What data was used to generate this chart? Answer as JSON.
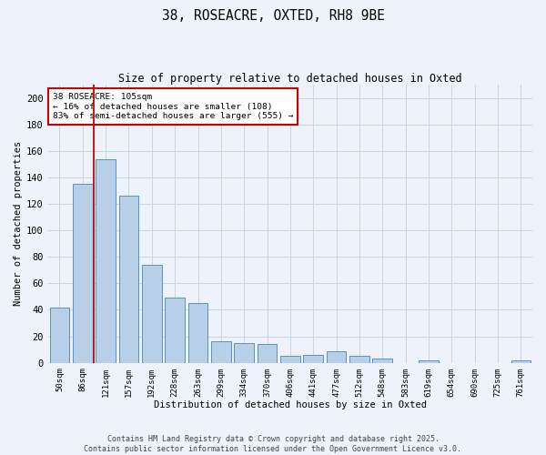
{
  "title_line1": "38, ROSEACRE, OXTED, RH8 9BE",
  "title_line2": "Size of property relative to detached houses in Oxted",
  "xlabel": "Distribution of detached houses by size in Oxted",
  "ylabel": "Number of detached properties",
  "categories": [
    "50sqm",
    "86sqm",
    "121sqm",
    "157sqm",
    "192sqm",
    "228sqm",
    "263sqm",
    "299sqm",
    "334sqm",
    "370sqm",
    "406sqm",
    "441sqm",
    "477sqm",
    "512sqm",
    "548sqm",
    "583sqm",
    "619sqm",
    "654sqm",
    "690sqm",
    "725sqm",
    "761sqm"
  ],
  "values": [
    42,
    135,
    154,
    126,
    74,
    49,
    45,
    16,
    15,
    14,
    5,
    6,
    9,
    5,
    3,
    0,
    2,
    0,
    0,
    0,
    2
  ],
  "bar_color": "#b8cfe8",
  "bar_edge_color": "#5b8fc9",
  "vline_x": 1.5,
  "vline_color": "#cc0000",
  "annotation_text": "38 ROSEACRE: 105sqm\n← 16% of detached houses are smaller (108)\n83% of semi-detached houses are larger (555) →",
  "annotation_box_facecolor": "#ffffff",
  "annotation_box_edgecolor": "#cc0000",
  "ylim": [
    0,
    210
  ],
  "yticks": [
    0,
    20,
    40,
    60,
    80,
    100,
    120,
    140,
    160,
    180,
    200
  ],
  "grid_color": "#c8d4e8",
  "background_color": "#eef2fa",
  "footer_line1": "Contains HM Land Registry data © Crown copyright and database right 2025.",
  "footer_line2": "Contains public sector information licensed under the Open Government Licence v3.0."
}
